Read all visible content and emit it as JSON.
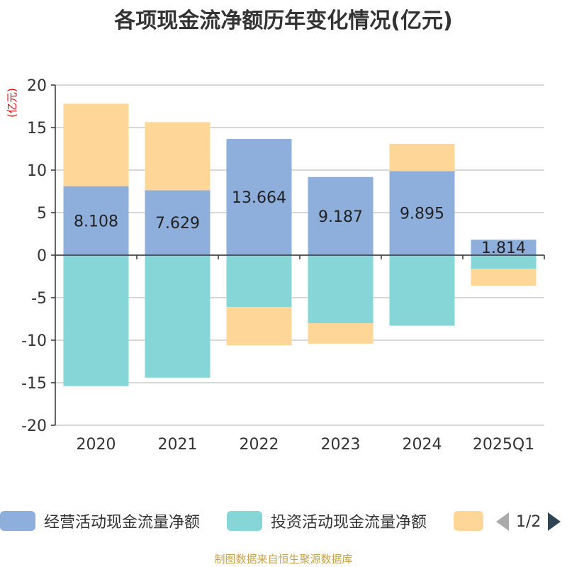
{
  "chart_data": {
    "type": "bar",
    "title": "各项现金流净额历年变化情况(亿元)",
    "ylabel": "(亿元)",
    "ylim": [
      -20,
      20
    ],
    "yticks": [
      20,
      15,
      10,
      5,
      0,
      -5,
      -10,
      -15,
      -20
    ],
    "categories": [
      "2020",
      "2021",
      "2022",
      "2023",
      "2024",
      "2025Q1"
    ],
    "series": [
      {
        "name": "经营活动现金流量净额",
        "color": "#8eaedb",
        "values": [
          8.108,
          7.629,
          13.664,
          9.187,
          9.895,
          1.814
        ],
        "labels": [
          "8.108",
          "7.629",
          "13.664",
          "9.187",
          "9.895",
          "1.814"
        ]
      },
      {
        "name": "投资活动现金流量净额",
        "color": "#86d5d7",
        "values": [
          -15.4,
          -14.4,
          -6.1,
          -8.0,
          -8.3,
          -1.6
        ]
      },
      {
        "name": "",
        "color": "#fed798",
        "values": [
          9.7,
          8.0,
          -4.5,
          -2.4,
          3.2,
          -2.0
        ]
      }
    ]
  },
  "legend": {
    "page": "1/2"
  },
  "source": "制图数据来自恒生聚源数据库"
}
